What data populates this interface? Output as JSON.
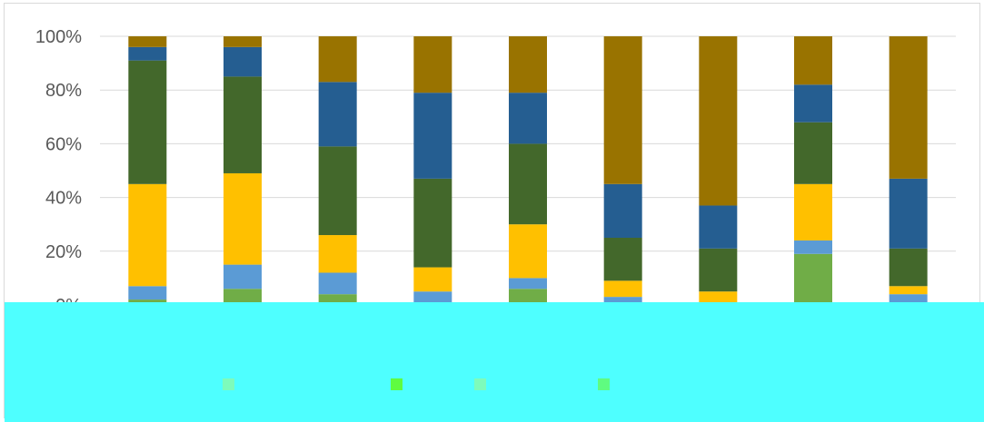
{
  "chart_data": {
    "type": "bar",
    "stacked": "percent",
    "title": "",
    "xlabel": "",
    "ylabel": "",
    "ylim": [
      0,
      100
    ],
    "y_ticks": [
      "0%",
      "20%",
      "40%",
      "60%",
      "80%",
      "100%"
    ],
    "grid": true,
    "categories": [
      "",
      "",
      "",
      "",
      "",
      "",
      "",
      "",
      ""
    ],
    "series": [
      {
        "color": "#70ad47",
        "values": [
          2,
          6,
          4,
          1,
          6,
          1,
          0,
          19,
          1
        ]
      },
      {
        "color": "#5b9bd5",
        "values": [
          5,
          9,
          8,
          4,
          4,
          2,
          0,
          5,
          3
        ]
      },
      {
        "color": "#ffc000",
        "values": [
          38,
          34,
          14,
          9,
          20,
          6,
          5,
          21,
          3
        ]
      },
      {
        "color": "#43682b",
        "values": [
          46,
          36,
          33,
          33,
          30,
          16,
          16,
          23,
          14
        ]
      },
      {
        "color": "#255e91",
        "values": [
          5,
          11,
          24,
          32,
          19,
          20,
          16,
          14,
          26
        ]
      },
      {
        "color": "#997300",
        "values": [
          4,
          4,
          17,
          21,
          21,
          55,
          63,
          18,
          53
        ]
      }
    ]
  },
  "legend_swatches": [
    {
      "color": "#7dfbbb"
    },
    {
      "color": "#5ffc40"
    },
    {
      "color": "#7dfbbb"
    },
    {
      "color": "#5ffc80"
    }
  ]
}
